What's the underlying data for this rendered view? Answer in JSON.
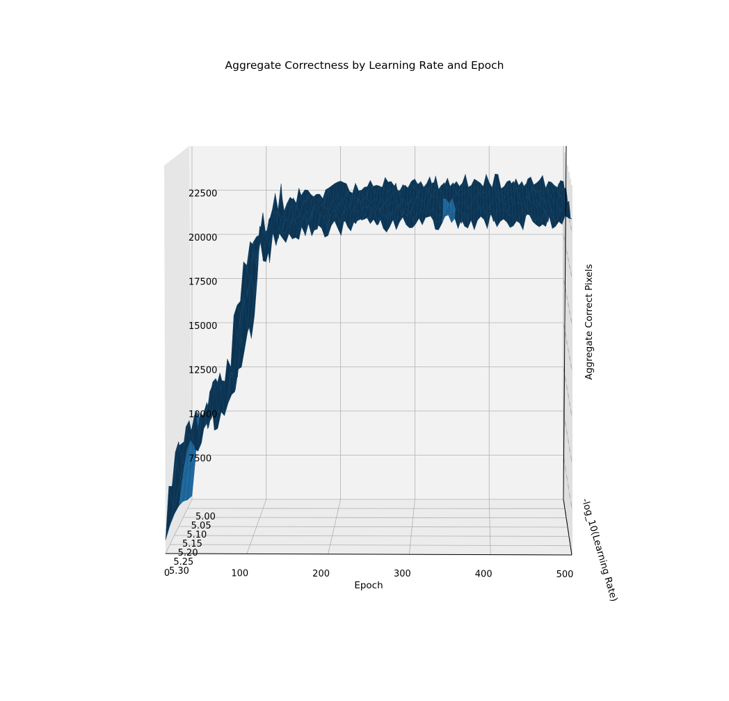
{
  "chart_data": {
    "type": "surface",
    "title": "Aggregate Correctness by Learning Rate and Epoch",
    "xlabel": "Epoch",
    "ylabel": "-log_10(Learning Rate)",
    "zlabel": "Aggregate Correct Pixels",
    "x_ticks": [
      0,
      100,
      200,
      300,
      400,
      500
    ],
    "y_ticks": [
      "5.00",
      "5.05",
      "5.10",
      "5.15",
      "5.20",
      "5.25",
      "5.30"
    ],
    "z_ticks": [
      "7500",
      "10000",
      "12500",
      "15000",
      "17500",
      "20000",
      "22500"
    ],
    "xlim": [
      0,
      500
    ],
    "ylim": [
      5.0,
      5.3
    ],
    "zlim": [
      5000,
      25000
    ],
    "grid": true,
    "surface_color": "#0c3452",
    "highlight_color": "#1f6aa0",
    "epoch_profile": [
      [
        0,
        5200
      ],
      [
        2,
        7500
      ],
      [
        5,
        8200
      ],
      [
        10,
        9800
      ],
      [
        20,
        10500
      ],
      [
        30,
        11000
      ],
      [
        40,
        11600
      ],
      [
        50,
        12200
      ],
      [
        60,
        12700
      ],
      [
        70,
        13400
      ],
      [
        80,
        15000
      ],
      [
        90,
        19000
      ],
      [
        100,
        20500
      ],
      [
        110,
        21300
      ],
      [
        120,
        21600
      ],
      [
        130,
        22000
      ],
      [
        150,
        22300
      ],
      [
        200,
        22600
      ],
      [
        250,
        22800
      ],
      [
        300,
        22900
      ],
      [
        400,
        23000
      ],
      [
        500,
        23000
      ]
    ]
  }
}
